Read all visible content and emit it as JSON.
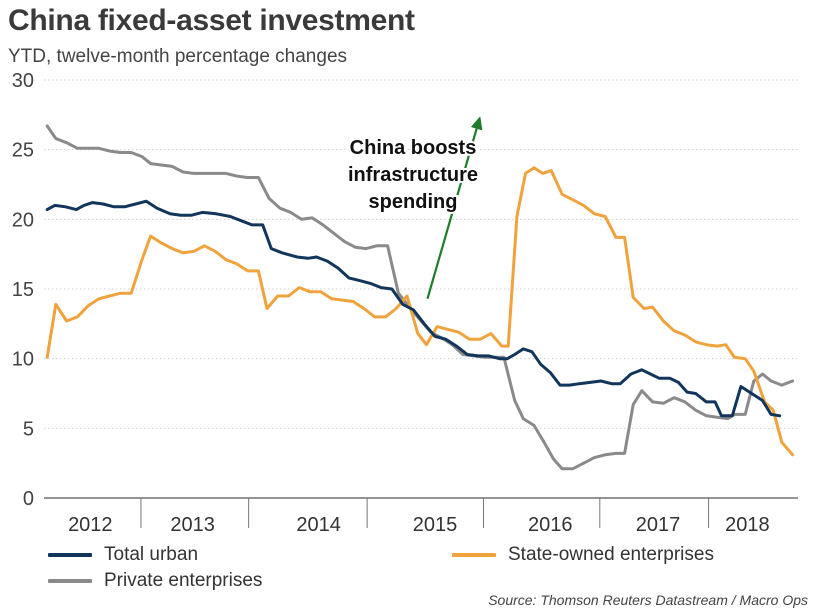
{
  "header": {
    "title": "China fixed-asset investment",
    "subtitle": "YTD, twelve-month percentage changes"
  },
  "source": "Source: Thomson Reuters Datastream / Macro Ops",
  "legend": {
    "total_urban": "Total urban",
    "state_owned": "State-owned enterprises",
    "private": "Private enterprises"
  },
  "colors": {
    "total_urban": "#12355b",
    "state_owned": "#f0a33d",
    "private": "#8a8a8a",
    "annotation_arrow": "#1f7a2a",
    "grid": "#d0d0d0"
  },
  "chart_data": {
    "type": "line",
    "title": "China fixed-asset investment",
    "subtitle": "YTD, twelve-month percentage changes",
    "xlabel": "",
    "ylabel": "",
    "xlim": [
      2011.75,
      2018.75
    ],
    "ylim": [
      0,
      30
    ],
    "yticks": [
      0,
      5,
      10,
      15,
      20,
      25,
      30
    ],
    "xtick_labels": [
      {
        "label": "2012",
        "x": 2012.18
      },
      {
        "label": "2013",
        "x": 2013.13
      },
      {
        "label": "2014",
        "x": 2014.3
      },
      {
        "label": "2015",
        "x": 2015.38
      },
      {
        "label": "2016",
        "x": 2016.45
      },
      {
        "label": "2017",
        "x": 2017.45
      },
      {
        "label": "2018",
        "x": 2018.28
      }
    ],
    "year_separators": [
      2012.65,
      2013.65,
      2014.75,
      2015.83,
      2016.91,
      2017.92
    ],
    "annotation": {
      "text_lines": [
        "China boosts",
        "infrastructure",
        "spending"
      ],
      "arrow_from": [
        2015.31,
        14.3
      ],
      "arrow_to": [
        2015.8,
        27.4
      ]
    },
    "series": [
      {
        "key": "total_urban",
        "name": "Total urban",
        "points": [
          [
            2011.78,
            20.7
          ],
          [
            2011.85,
            21.0
          ],
          [
            2011.95,
            20.9
          ],
          [
            2012.05,
            20.7
          ],
          [
            2012.12,
            21.0
          ],
          [
            2012.2,
            21.2
          ],
          [
            2012.3,
            21.1
          ],
          [
            2012.4,
            20.9
          ],
          [
            2012.5,
            20.9
          ],
          [
            2012.6,
            21.1
          ],
          [
            2012.7,
            21.3
          ],
          [
            2012.8,
            20.8
          ],
          [
            2012.92,
            20.4
          ],
          [
            2013.02,
            20.3
          ],
          [
            2013.12,
            20.3
          ],
          [
            2013.22,
            20.5
          ],
          [
            2013.35,
            20.4
          ],
          [
            2013.48,
            20.2
          ],
          [
            2013.58,
            19.9
          ],
          [
            2013.68,
            19.6
          ],
          [
            2013.78,
            19.6
          ],
          [
            2013.86,
            17.9
          ],
          [
            2013.96,
            17.6
          ],
          [
            2014.1,
            17.3
          ],
          [
            2014.2,
            17.2
          ],
          [
            2014.28,
            17.3
          ],
          [
            2014.38,
            17.0
          ],
          [
            2014.48,
            16.5
          ],
          [
            2014.58,
            15.8
          ],
          [
            2014.68,
            15.6
          ],
          [
            2014.78,
            15.4
          ],
          [
            2014.88,
            15.1
          ],
          [
            2014.98,
            15.0
          ],
          [
            2015.08,
            13.9
          ],
          [
            2015.18,
            13.5
          ],
          [
            2015.28,
            12.5
          ],
          [
            2015.38,
            11.6
          ],
          [
            2015.48,
            11.4
          ],
          [
            2015.58,
            10.9
          ],
          [
            2015.68,
            10.3
          ],
          [
            2015.78,
            10.2
          ],
          [
            2015.88,
            10.2
          ],
          [
            2015.98,
            10.0
          ],
          [
            2016.05,
            10.0
          ],
          [
            2016.12,
            10.3
          ],
          [
            2016.2,
            10.7
          ],
          [
            2016.28,
            10.5
          ],
          [
            2016.36,
            9.6
          ],
          [
            2016.45,
            9.0
          ],
          [
            2016.54,
            8.1
          ],
          [
            2016.63,
            8.1
          ],
          [
            2016.72,
            8.2
          ],
          [
            2016.82,
            8.3
          ],
          [
            2016.92,
            8.4
          ],
          [
            2017.02,
            8.2
          ],
          [
            2017.1,
            8.2
          ],
          [
            2017.2,
            8.9
          ],
          [
            2017.3,
            9.2
          ],
          [
            2017.38,
            8.9
          ],
          [
            2017.46,
            8.6
          ],
          [
            2017.56,
            8.6
          ],
          [
            2017.64,
            8.3
          ],
          [
            2017.72,
            7.6
          ],
          [
            2017.8,
            7.5
          ],
          [
            2017.9,
            6.9
          ],
          [
            2017.98,
            6.9
          ],
          [
            2018.04,
            5.9
          ],
          [
            2018.14,
            5.9
          ],
          [
            2018.22,
            8.0
          ],
          [
            2018.32,
            7.5
          ],
          [
            2018.42,
            7.0
          ],
          [
            2018.5,
            6.0
          ],
          [
            2018.58,
            5.9
          ]
        ]
      },
      {
        "key": "state_owned",
        "name": "State-owned enterprises",
        "points": [
          [
            2011.78,
            10.1
          ],
          [
            2011.86,
            13.9
          ],
          [
            2011.96,
            12.7
          ],
          [
            2012.06,
            13.0
          ],
          [
            2012.16,
            13.8
          ],
          [
            2012.26,
            14.3
          ],
          [
            2012.36,
            14.5
          ],
          [
            2012.46,
            14.7
          ],
          [
            2012.56,
            14.7
          ],
          [
            2012.66,
            17.1
          ],
          [
            2012.74,
            18.8
          ],
          [
            2012.84,
            18.3
          ],
          [
            2012.94,
            17.9
          ],
          [
            2013.04,
            17.6
          ],
          [
            2013.14,
            17.7
          ],
          [
            2013.24,
            18.1
          ],
          [
            2013.34,
            17.7
          ],
          [
            2013.44,
            17.1
          ],
          [
            2013.54,
            16.8
          ],
          [
            2013.64,
            16.3
          ],
          [
            2013.74,
            16.3
          ],
          [
            2013.82,
            13.6
          ],
          [
            2013.92,
            14.5
          ],
          [
            2014.02,
            14.5
          ],
          [
            2014.12,
            15.1
          ],
          [
            2014.22,
            14.8
          ],
          [
            2014.32,
            14.8
          ],
          [
            2014.42,
            14.3
          ],
          [
            2014.52,
            14.2
          ],
          [
            2014.62,
            14.1
          ],
          [
            2014.72,
            13.6
          ],
          [
            2014.82,
            13.0
          ],
          [
            2014.92,
            13.0
          ],
          [
            2015.02,
            13.6
          ],
          [
            2015.12,
            14.5
          ],
          [
            2015.22,
            11.8
          ],
          [
            2015.3,
            11.0
          ],
          [
            2015.4,
            12.3
          ],
          [
            2015.5,
            12.1
          ],
          [
            2015.6,
            11.9
          ],
          [
            2015.7,
            11.4
          ],
          [
            2015.8,
            11.4
          ],
          [
            2015.9,
            11.8
          ],
          [
            2016.0,
            10.9
          ],
          [
            2016.06,
            10.9
          ],
          [
            2016.14,
            20.2
          ],
          [
            2016.22,
            23.3
          ],
          [
            2016.3,
            23.7
          ],
          [
            2016.38,
            23.3
          ],
          [
            2016.46,
            23.5
          ],
          [
            2016.56,
            21.8
          ],
          [
            2016.66,
            21.4
          ],
          [
            2016.76,
            21.0
          ],
          [
            2016.86,
            20.4
          ],
          [
            2016.96,
            20.2
          ],
          [
            2017.06,
            18.7
          ],
          [
            2017.14,
            18.7
          ],
          [
            2017.22,
            14.4
          ],
          [
            2017.32,
            13.6
          ],
          [
            2017.4,
            13.7
          ],
          [
            2017.5,
            12.7
          ],
          [
            2017.6,
            12.0
          ],
          [
            2017.7,
            11.7
          ],
          [
            2017.8,
            11.2
          ],
          [
            2017.9,
            11.0
          ],
          [
            2018.0,
            10.9
          ],
          [
            2018.08,
            11.0
          ],
          [
            2018.16,
            10.1
          ],
          [
            2018.26,
            10.0
          ],
          [
            2018.34,
            9.1
          ],
          [
            2018.44,
            6.9
          ],
          [
            2018.52,
            6.3
          ],
          [
            2018.6,
            4.0
          ],
          [
            2018.7,
            3.1
          ]
        ]
      },
      {
        "key": "private",
        "name": "Private enterprises",
        "points": [
          [
            2011.78,
            26.7
          ],
          [
            2011.86,
            25.8
          ],
          [
            2011.96,
            25.5
          ],
          [
            2012.06,
            25.1
          ],
          [
            2012.16,
            25.1
          ],
          [
            2012.26,
            25.1
          ],
          [
            2012.36,
            24.9
          ],
          [
            2012.46,
            24.8
          ],
          [
            2012.56,
            24.8
          ],
          [
            2012.66,
            24.5
          ],
          [
            2012.74,
            24.0
          ],
          [
            2012.84,
            23.9
          ],
          [
            2012.94,
            23.8
          ],
          [
            2013.04,
            23.4
          ],
          [
            2013.14,
            23.3
          ],
          [
            2013.24,
            23.3
          ],
          [
            2013.34,
            23.3
          ],
          [
            2013.44,
            23.3
          ],
          [
            2013.54,
            23.1
          ],
          [
            2013.64,
            23.0
          ],
          [
            2013.74,
            23.0
          ],
          [
            2013.84,
            21.5
          ],
          [
            2013.94,
            20.8
          ],
          [
            2014.04,
            20.5
          ],
          [
            2014.14,
            20.0
          ],
          [
            2014.24,
            20.1
          ],
          [
            2014.34,
            19.6
          ],
          [
            2014.44,
            19.0
          ],
          [
            2014.54,
            18.4
          ],
          [
            2014.64,
            18.0
          ],
          [
            2014.74,
            17.9
          ],
          [
            2014.84,
            18.1
          ],
          [
            2014.94,
            18.1
          ],
          [
            2015.04,
            14.7
          ],
          [
            2015.14,
            13.7
          ],
          [
            2015.24,
            12.8
          ],
          [
            2015.34,
            11.9
          ],
          [
            2015.44,
            11.5
          ],
          [
            2015.54,
            11.0
          ],
          [
            2015.64,
            10.3
          ],
          [
            2015.74,
            10.2
          ],
          [
            2015.84,
            10.1
          ],
          [
            2015.94,
            10.1
          ],
          [
            2016.02,
            10.1
          ],
          [
            2016.12,
            7.0
          ],
          [
            2016.2,
            5.7
          ],
          [
            2016.3,
            5.2
          ],
          [
            2016.4,
            3.9
          ],
          [
            2016.48,
            2.8
          ],
          [
            2016.56,
            2.1
          ],
          [
            2016.66,
            2.1
          ],
          [
            2016.76,
            2.5
          ],
          [
            2016.86,
            2.9
          ],
          [
            2016.96,
            3.1
          ],
          [
            2017.06,
            3.2
          ],
          [
            2017.14,
            3.2
          ],
          [
            2017.22,
            6.7
          ],
          [
            2017.3,
            7.7
          ],
          [
            2017.4,
            6.9
          ],
          [
            2017.5,
            6.8
          ],
          [
            2017.6,
            7.2
          ],
          [
            2017.7,
            6.9
          ],
          [
            2017.8,
            6.3
          ],
          [
            2017.9,
            5.9
          ],
          [
            2018.0,
            5.8
          ],
          [
            2018.1,
            5.7
          ],
          [
            2018.16,
            6.0
          ],
          [
            2018.26,
            6.0
          ],
          [
            2018.34,
            8.4
          ],
          [
            2018.42,
            8.9
          ],
          [
            2018.5,
            8.4
          ],
          [
            2018.6,
            8.1
          ],
          [
            2018.7,
            8.4
          ]
        ]
      }
    ]
  }
}
